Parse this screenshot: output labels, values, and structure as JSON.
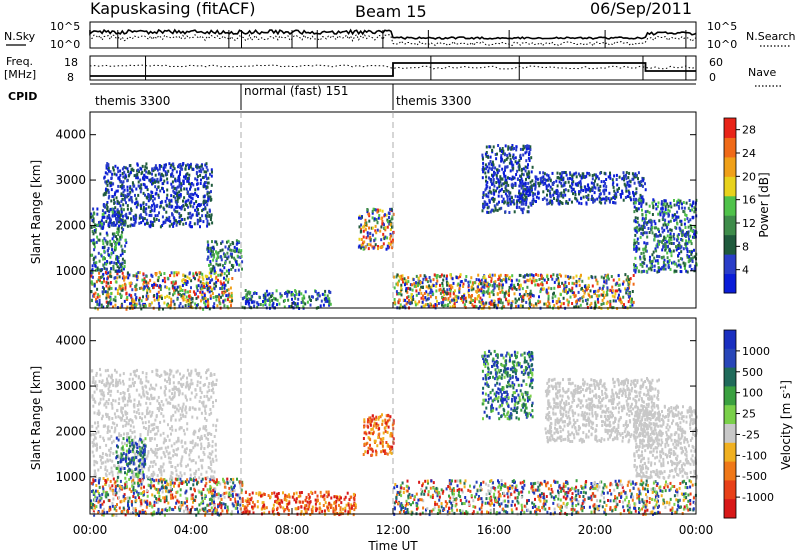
{
  "header": {
    "station": "Kapuskasing (fitACF)",
    "beam": "Beam 15",
    "date": "06/Sep/2011"
  },
  "top_panels": {
    "nsky_label": "N.Sky",
    "nsearch_label": "N.Search",
    "noise_ticks_left": [
      "10^5",
      "10^0"
    ],
    "noise_ticks_right": [
      "10^5",
      "10^0"
    ],
    "freq_label": "Freq.",
    "freq_unit": "[MHz]",
    "freq_ticks": [
      "18",
      "8"
    ],
    "nave_label": "Nave",
    "nave_ticks": [
      "60",
      "0"
    ],
    "cpid_label": "CPID",
    "cpid_segments": [
      {
        "label": "themis 3300",
        "start_hour": 0,
        "end_hour": 6
      },
      {
        "label": "normal (fast) 151",
        "start_hour": 6,
        "end_hour": 12
      },
      {
        "label": "themis 3300",
        "start_hour": 12,
        "end_hour": 24
      }
    ]
  },
  "colors": {
    "power_scale": [
      "#0a1cd8",
      "#2a3dc8",
      "#1f5a3c",
      "#3e8c4a",
      "#4fc24a",
      "#e8d21c",
      "#f0a018",
      "#f06a18",
      "#e82418"
    ],
    "velocity_scale": [
      "#1a2fc0",
      "#2846b8",
      "#1f6a5a",
      "#3aa040",
      "#7ad04a",
      "#c8c8c8",
      "#f0b020",
      "#f07818",
      "#e84018",
      "#d81818"
    ]
  },
  "chart_data": [
    {
      "type": "heatmap",
      "name": "power_panel",
      "ylabel": "Slant Range [km]",
      "yticks": [
        "1000",
        "2000",
        "3000",
        "4000"
      ],
      "xticks": [
        "00:00",
        "04:00",
        "08:00",
        "12:00",
        "16:00",
        "20:00",
        "00:00"
      ],
      "xlim_hours": [
        0,
        24
      ],
      "ylim": [
        180,
        4500
      ],
      "colorbar": {
        "label": "Power [dB]",
        "ticks": [
          "4",
          "8",
          "12",
          "16",
          "20",
          "24",
          "28"
        ],
        "range": [
          0,
          30
        ]
      },
      "regions": [
        {
          "x": [
            0,
            5.6
          ],
          "y": [
            180,
            1000
          ],
          "level": "high"
        },
        {
          "x": [
            0,
            1.4
          ],
          "y": [
            1000,
            2400
          ],
          "level": "mid"
        },
        {
          "x": [
            0.5,
            4.8
          ],
          "y": [
            2000,
            3400
          ],
          "level": "low"
        },
        {
          "x": [
            4.6,
            6.0
          ],
          "y": [
            1000,
            1700
          ],
          "level": "mid"
        },
        {
          "x": [
            6.0,
            9.5
          ],
          "y": [
            200,
            600
          ],
          "level": "mid"
        },
        {
          "x": [
            10.6,
            12.0
          ],
          "y": [
            1500,
            2400
          ],
          "level": "mixed"
        },
        {
          "x": [
            12.0,
            21.5
          ],
          "y": [
            200,
            950
          ],
          "level": "high"
        },
        {
          "x": [
            15.5,
            17.5
          ],
          "y": [
            2300,
            3800
          ],
          "level": "low"
        },
        {
          "x": [
            17.0,
            22.0
          ],
          "y": [
            2500,
            3200
          ],
          "level": "low"
        },
        {
          "x": [
            21.5,
            24.0
          ],
          "y": [
            1000,
            2600
          ],
          "level": "mid"
        }
      ]
    },
    {
      "type": "heatmap",
      "name": "velocity_panel",
      "xlabel": "Time UT",
      "ylabel": "Slant Range [km]",
      "yticks": [
        "1000",
        "2000",
        "3000",
        "4000"
      ],
      "xticks": [
        "00:00",
        "04:00",
        "08:00",
        "12:00",
        "16:00",
        "20:00",
        "00:00"
      ],
      "xlim_hours": [
        0,
        24
      ],
      "ylim": [
        180,
        4500
      ],
      "colorbar": {
        "label": "Velocity [m s^-1]",
        "ticks": [
          "1000",
          "500",
          "100",
          "25",
          "-25",
          "-100",
          "-500",
          "-1000"
        ]
      },
      "regions": [
        {
          "x": [
            0,
            6.0
          ],
          "y": [
            180,
            1000
          ],
          "level": "mixed"
        },
        {
          "x": [
            0,
            5.0
          ],
          "y": [
            1000,
            3400
          ],
          "level": "ground"
        },
        {
          "x": [
            1.0,
            2.2
          ],
          "y": [
            1000,
            1900
          ],
          "level": "positive"
        },
        {
          "x": [
            6.0,
            10.5
          ],
          "y": [
            200,
            700
          ],
          "level": "negative"
        },
        {
          "x": [
            10.8,
            12.0
          ],
          "y": [
            1500,
            2400
          ],
          "level": "negative"
        },
        {
          "x": [
            12.0,
            24.0
          ],
          "y": [
            200,
            950
          ],
          "level": "mixed"
        },
        {
          "x": [
            15.5,
            17.5
          ],
          "y": [
            2300,
            3800
          ],
          "level": "positive"
        },
        {
          "x": [
            18.0,
            22.5
          ],
          "y": [
            1800,
            3200
          ],
          "level": "ground"
        },
        {
          "x": [
            21.5,
            24.0
          ],
          "y": [
            1000,
            2600
          ],
          "level": "ground"
        }
      ]
    }
  ]
}
